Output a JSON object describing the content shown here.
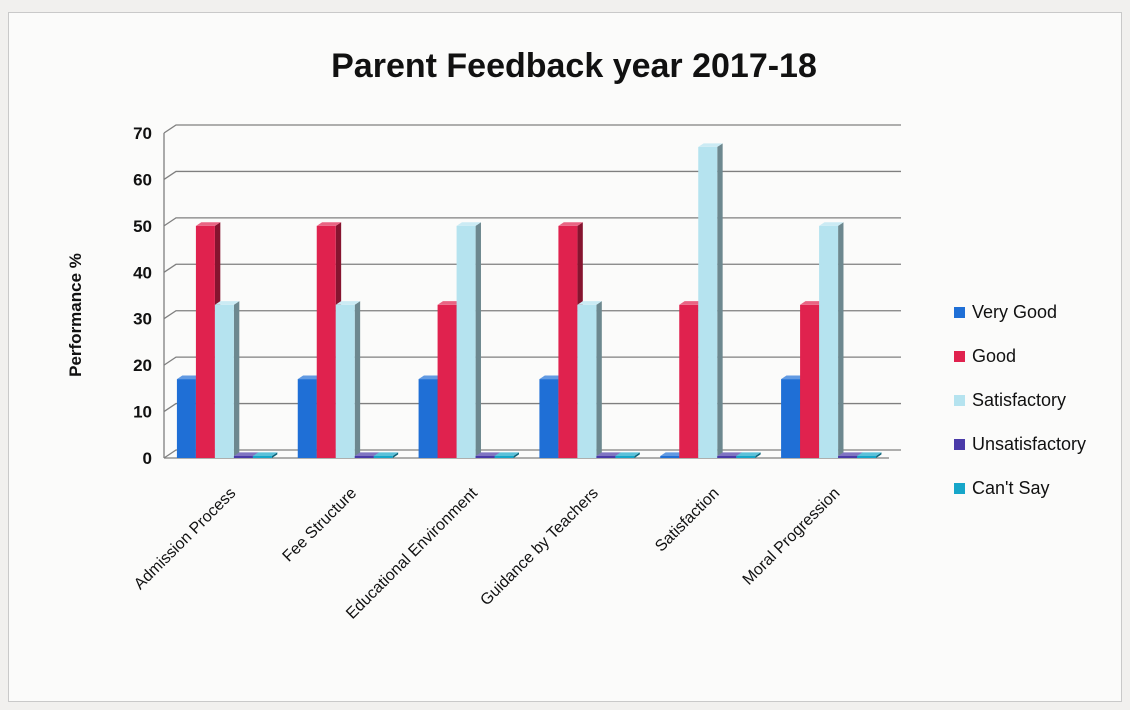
{
  "chart_data": {
    "type": "bar",
    "title": "Parent Feedback year 2017-18",
    "xlabel": "",
    "ylabel": "Performance %",
    "ylim": [
      0,
      70
    ],
    "yticks": [
      0,
      10,
      20,
      30,
      40,
      50,
      60,
      70
    ],
    "grid": true,
    "legend_position": "right",
    "categories": [
      "Admission Process",
      "Fee Structure",
      "Educational Environment",
      "Guidance by Teachers",
      "Satisfaction",
      "Moral Progression"
    ],
    "series": [
      {
        "name": "Very Good",
        "color": "#1f6fd6",
        "values": [
          17,
          17,
          17,
          17,
          0,
          17
        ]
      },
      {
        "name": "Good",
        "color": "#e0224e",
        "values": [
          50,
          50,
          33,
          50,
          33,
          33
        ]
      },
      {
        "name": "Satisfactory",
        "color": "#b5e3ef",
        "values": [
          33,
          33,
          50,
          33,
          67,
          50
        ]
      },
      {
        "name": "Unsatisfactory",
        "color": "#4a3aa8",
        "values": [
          0,
          0,
          0,
          0,
          0,
          0
        ]
      },
      {
        "name": "Can't Say",
        "color": "#16a6c9",
        "values": [
          0,
          0,
          0,
          0,
          0,
          0
        ]
      }
    ]
  }
}
